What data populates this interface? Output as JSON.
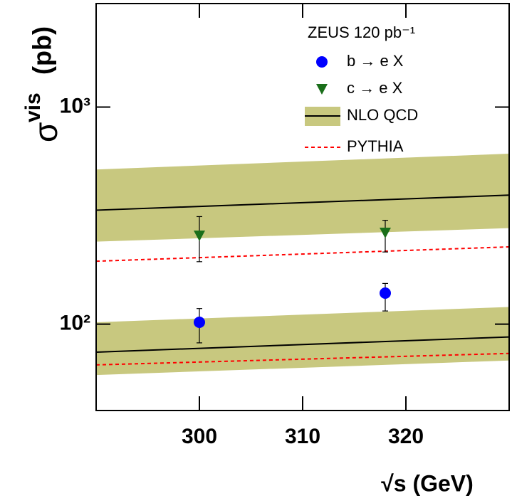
{
  "chart_data": {
    "type": "scatter",
    "title": "ZEUS 120 pb⁻¹",
    "x_label": "√s (GeV)",
    "y_label": {
      "symbol": "σ",
      "superscript": "vis",
      "unit": "(pb)"
    },
    "xlim": [
      290,
      330
    ],
    "ylim": [
      40,
      3000
    ],
    "log_y": true,
    "xticks": [
      300,
      310,
      320
    ],
    "yticks": [
      {
        "value": 100,
        "label": "10²"
      },
      {
        "value": 1000,
        "label": "10³"
      }
    ],
    "legend": "upper right",
    "series": [
      {
        "name": "b → e X",
        "color": "#0000ff",
        "marker": "circle",
        "x": [
          300,
          318
        ],
        "values": [
          102,
          139
        ],
        "low": [
          82,
          115
        ],
        "high": [
          118,
          154
        ]
      },
      {
        "name": "c → e X",
        "color": "#1a6e1a",
        "marker": "triangle-down",
        "x": [
          300,
          318
        ],
        "values": [
          256,
          264
        ],
        "low": [
          194,
          215
        ],
        "high": [
          313,
          301
        ]
      }
    ],
    "bands": [
      {
        "name": "NLO QCD",
        "color": "#000000",
        "fill": "#c8c87f",
        "curves": [
          {
            "x": [
              290,
              330
            ],
            "values": [
              335,
              393
            ],
            "low": [
              240,
              277
            ],
            "high": [
              516,
              610
            ]
          },
          {
            "x": [
              290,
              330
            ],
            "values": [
              74.3,
              87.3
            ],
            "low": [
              58.3,
              68
            ],
            "high": [
              102,
              120
            ]
          }
        ]
      }
    ],
    "lines": [
      {
        "name": "PYTHIA",
        "color": "#ff0000",
        "dashed": true,
        "curves": [
          {
            "x": [
              290,
              330
            ],
            "values": [
              195,
              227
            ]
          },
          {
            "x": [
              290,
              330
            ],
            "values": [
              64.9,
              73.3
            ]
          }
        ]
      }
    ]
  }
}
